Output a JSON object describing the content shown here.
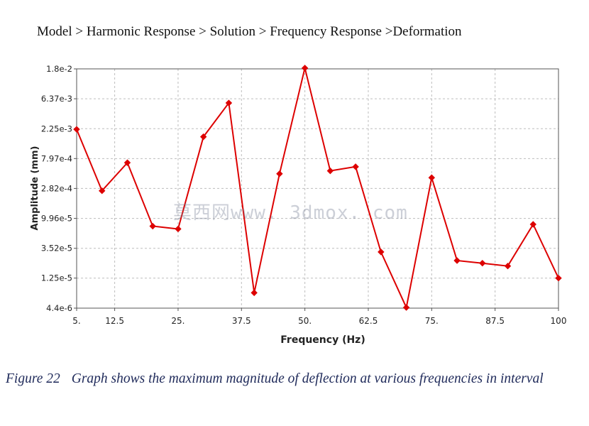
{
  "breadcrumb": "Model > Harmonic Response > Solution > Frequency Response >Deformation",
  "watermark": "莫西网www. 3dmox. com",
  "caption": {
    "figure": "Figure 22",
    "text": "Graph shows the maximum magnitude of deflection at various frequencies in interval"
  },
  "colors": {
    "series": "#dd0000",
    "grid": "#bdbdbd",
    "axis": "#555555"
  },
  "chart_data": {
    "type": "line",
    "xlabel": "Frequency (Hz)",
    "ylabel": "Amplitude (mm)",
    "y_scale": "log",
    "grid": true,
    "xlim": [
      5,
      100
    ],
    "ylim": [
      4.4e-06,
      0.018
    ],
    "x_ticks": [
      5,
      12.5,
      25,
      37.5,
      50,
      62.5,
      75,
      87.5,
      100
    ],
    "x_tick_labels": [
      "5.",
      "12.5",
      "25.",
      "37.5",
      "50.",
      "62.5",
      "75.",
      "87.5",
      "100"
    ],
    "y_ticks": [
      4.4e-06,
      1.25e-05,
      3.52e-05,
      9.96e-05,
      0.000282,
      0.000797,
      0.00225,
      0.00637,
      0.018
    ],
    "y_tick_labels": [
      "4.4e-6",
      "1.25e-5",
      "3.52e-5",
      "9.96e-5",
      "2.82e-4",
      "7.97e-4",
      "2.25e-3",
      "6.37e-3",
      "1.8e-2"
    ],
    "series": [
      {
        "x": [
          5,
          10,
          15,
          20,
          25,
          30,
          35,
          40,
          45,
          50,
          55,
          60,
          65,
          70,
          75,
          80,
          85,
          90,
          95,
          100
        ],
        "y": [
          0.0022,
          0.00026,
          0.00069,
          7.6e-05,
          6.9e-05,
          0.0017,
          0.0055,
          7.5e-06,
          0.00047,
          0.0185,
          0.00052,
          0.0006,
          3.1e-05,
          4.5e-06,
          0.00041,
          2.3e-05,
          2.1e-05,
          1.9e-05,
          8.1e-05,
          1.25e-05
        ]
      }
    ]
  }
}
